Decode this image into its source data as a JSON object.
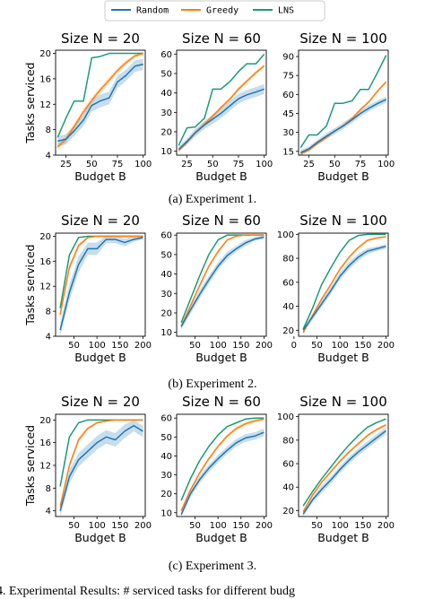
{
  "colors": {
    "Random": "#1f77b4",
    "Greedy": "#ff7f0e",
    "LNS": "#1a9a7a"
  },
  "legend": {
    "entries": [
      "Random",
      "Greedy",
      "LNS"
    ],
    "placement": "top"
  },
  "ylabel": "Tasks serviced",
  "xlabel": "Budget B",
  "captions": [
    "(a) Experiment 1.",
    "(b) Experiment 2.",
    "(c) Experiment 3."
  ],
  "bottom_text": "4. Experimental Results: # serviced tasks for different budg",
  "chart_data": [
    {
      "type": "line",
      "title": "Size N = 20",
      "xlabel": "Budget B",
      "ylabel": "Tasks serviced",
      "xlim": [
        15,
        102
      ],
      "ylim": [
        4,
        20.5
      ],
      "xticks": [
        25,
        50,
        75,
        100
      ],
      "yticks": [
        4,
        8,
        12,
        16,
        20
      ],
      "grid": false,
      "x": [
        17,
        25,
        33,
        42,
        50,
        58,
        67,
        75,
        83,
        92,
        100
      ],
      "series": [
        {
          "name": "Random",
          "values": [
            6.2,
            6.5,
            7.8,
            9.5,
            11.8,
            12.5,
            13.0,
            15.5,
            16.5,
            18.0,
            18.3
          ],
          "band": [
            0.8,
            0.8,
            0.8,
            0.9,
            1.0,
            1.0,
            1.0,
            1.0,
            0.9,
            0.9,
            0.9
          ]
        },
        {
          "name": "Greedy",
          "values": [
            5.3,
            6.5,
            8.5,
            10.8,
            12.6,
            14.2,
            15.8,
            17.3,
            18.5,
            19.6,
            20.0
          ],
          "band": [
            0.5,
            0.5,
            0.5,
            0.5,
            0.5,
            0.5,
            0.5,
            0.4,
            0.4,
            0.3,
            0.3
          ]
        },
        {
          "name": "LNS",
          "values": [
            6.8,
            9.8,
            12.5,
            12.5,
            19.3,
            19.5,
            20.0,
            20.0,
            20.0,
            20.0,
            20.0
          ]
        }
      ]
    },
    {
      "type": "line",
      "title": "Size N = 60",
      "xlabel": "Budget B",
      "ylabel": "",
      "xlim": [
        15,
        102
      ],
      "ylim": [
        8,
        62
      ],
      "xticks": [
        25,
        50,
        75,
        100
      ],
      "yticks": [
        10,
        20,
        30,
        40,
        50,
        60
      ],
      "grid": false,
      "x": [
        17,
        25,
        33,
        42,
        50,
        58,
        67,
        75,
        83,
        92,
        100
      ],
      "series": [
        {
          "name": "Random",
          "values": [
            11.0,
            15.0,
            19.5,
            23.5,
            26.5,
            29.5,
            33.5,
            37.0,
            39.0,
            40.5,
            42.0
          ],
          "band": [
            1.5,
            1.5,
            2,
            2,
            2.5,
            2.5,
            2.5,
            2.5,
            2.5,
            2.5,
            2.5
          ]
        },
        {
          "name": "Greedy",
          "values": [
            10.5,
            14.5,
            19.5,
            24.0,
            28.0,
            32.5,
            37.0,
            42.0,
            46.0,
            50.5,
            54.0
          ],
          "band": [
            1,
            1,
            1,
            1,
            1,
            1,
            1,
            1,
            1,
            1,
            1
          ]
        },
        {
          "name": "LNS",
          "values": [
            13.0,
            22.0,
            22.5,
            27.0,
            42.0,
            42.0,
            46.0,
            51.0,
            55.0,
            55.0,
            60.0
          ]
        }
      ]
    },
    {
      "type": "line",
      "title": "Size N = 100",
      "xlabel": "Budget B",
      "ylabel": "",
      "xlim": [
        15,
        102
      ],
      "ylim": [
        12,
        95
      ],
      "xticks": [
        25,
        50,
        75,
        100
      ],
      "yticks": [
        15,
        30,
        45,
        60,
        75,
        90
      ],
      "grid": false,
      "x": [
        17,
        25,
        33,
        42,
        50,
        58,
        67,
        75,
        83,
        92,
        100
      ],
      "series": [
        {
          "name": "Random",
          "values": [
            14,
            17,
            22,
            27,
            31,
            35,
            40,
            45,
            49,
            53,
            56
          ],
          "band": [
            2,
            2,
            2,
            2.5,
            2.5,
            2.5,
            2.5,
            2.5,
            2.5,
            2.5,
            2.5
          ]
        },
        {
          "name": "Greedy",
          "values": [
            13,
            16,
            21,
            26,
            31,
            35,
            41,
            48,
            54,
            63,
            70
          ],
          "band": [
            1,
            1,
            1,
            1,
            1.2,
            1.2,
            1.2,
            1.2,
            1.2,
            1.2,
            1.2
          ]
        },
        {
          "name": "LNS",
          "values": [
            18,
            28,
            28,
            35,
            53,
            53,
            55,
            64,
            64,
            78,
            91
          ]
        }
      ]
    },
    {
      "type": "line",
      "title": "Size N = 20",
      "xlabel": "Budget B",
      "ylabel": "Tasks serviced",
      "xlim": [
        10,
        205
      ],
      "ylim": [
        4,
        20.5
      ],
      "xticks": [
        50,
        100,
        150,
        200
      ],
      "yticks": [
        4,
        8,
        12,
        16,
        20
      ],
      "grid": false,
      "x": [
        20,
        40,
        60,
        80,
        100,
        120,
        140,
        160,
        180,
        200
      ],
      "series": [
        {
          "name": "Random",
          "values": [
            5.0,
            11.0,
            15.5,
            18.0,
            18.0,
            19.5,
            19.5,
            19.0,
            19.5,
            19.8
          ],
          "band": [
            1.0,
            1.3,
            1.3,
            1.0,
            1.0,
            0.6,
            0.6,
            0.6,
            0.4,
            0.3
          ]
        },
        {
          "name": "Greedy",
          "values": [
            7.5,
            15.0,
            18.5,
            19.8,
            20.0,
            20.0,
            20.0,
            20.0,
            20.0,
            20.0
          ],
          "band": [
            0.5,
            0.5,
            0.4,
            0.2,
            0.1,
            0,
            0,
            0,
            0,
            0
          ]
        },
        {
          "name": "LNS",
          "values": [
            8.5,
            17.0,
            19.8,
            20.0,
            20.0,
            20.0,
            20.0,
            20.0,
            20.0,
            20.0
          ]
        }
      ]
    },
    {
      "type": "line",
      "title": "Size N = 60",
      "xlabel": "Budget B",
      "ylabel": "",
      "xlim": [
        10,
        205
      ],
      "ylim": [
        8,
        61
      ],
      "xticks": [
        50,
        100,
        150,
        200
      ],
      "yticks": [
        10,
        20,
        30,
        40,
        50,
        60
      ],
      "grid": false,
      "x": [
        20,
        40,
        60,
        80,
        100,
        120,
        140,
        160,
        180,
        200
      ],
      "series": [
        {
          "name": "Random",
          "values": [
            13.0,
            21.5,
            29.5,
            37.0,
            44.0,
            49.5,
            53.0,
            56.0,
            58.0,
            59.0
          ],
          "band": [
            1.5,
            2,
            2,
            2,
            2,
            2,
            1.5,
            1.5,
            1,
            1
          ]
        },
        {
          "name": "Greedy",
          "values": [
            13.0,
            23.5,
            34.0,
            44.0,
            51.5,
            57.5,
            59.5,
            60.0,
            60.0,
            60.0
          ],
          "band": [
            1,
            1,
            1,
            1,
            1,
            0.5,
            0.2,
            0,
            0,
            0
          ]
        },
        {
          "name": "LNS",
          "values": [
            15.0,
            27.0,
            39.0,
            50.0,
            57.5,
            60.0,
            60.0,
            60.0,
            60.0,
            60.0
          ]
        }
      ]
    },
    {
      "type": "line",
      "title": "Size N = 100",
      "xlabel": "Budget B",
      "ylabel": "",
      "xlim": [
        10,
        205
      ],
      "ylim": [
        15,
        101
      ],
      "xticks": [
        0,
        50,
        100,
        150,
        200
      ],
      "yticks": [
        20,
        40,
        60,
        80,
        100
      ],
      "grid": false,
      "x": [
        20,
        40,
        60,
        80,
        100,
        120,
        140,
        160,
        180,
        200
      ],
      "series": [
        {
          "name": "Random",
          "values": [
            20,
            31,
            42,
            53,
            65,
            74,
            81,
            86,
            88,
            90
          ],
          "band": [
            2,
            2.5,
            3,
            3,
            3,
            3,
            3,
            2.5,
            2,
            2
          ]
        },
        {
          "name": "Greedy",
          "values": [
            18,
            32,
            46,
            58,
            71,
            81,
            89,
            95,
            97,
            98
          ],
          "band": [
            1.2,
            1.2,
            1.2,
            1.2,
            1.2,
            1.2,
            1,
            1,
            0.8,
            0.8
          ]
        },
        {
          "name": "LNS",
          "values": [
            21,
            38,
            58,
            72,
            85,
            95,
            99,
            100,
            100,
            100
          ]
        }
      ]
    },
    {
      "type": "line",
      "title": "Size N = 20",
      "xlabel": "Budget B",
      "ylabel": "Tasks serviced",
      "xlim": [
        10,
        205
      ],
      "ylim": [
        3,
        21
      ],
      "xticks": [
        50,
        100,
        150,
        200
      ],
      "yticks": [
        4,
        8,
        12,
        16,
        20
      ],
      "grid": false,
      "x": [
        20,
        40,
        60,
        80,
        100,
        120,
        140,
        160,
        180,
        200
      ],
      "series": [
        {
          "name": "Random",
          "values": [
            4.0,
            10.0,
            13.0,
            14.5,
            16.0,
            17.0,
            16.5,
            18.0,
            19.0,
            18.0
          ],
          "band": [
            1.0,
            1.2,
            1.2,
            1.2,
            1.2,
            1.2,
            1.2,
            1.2,
            1.0,
            1.0
          ]
        },
        {
          "name": "Greedy",
          "values": [
            4.8,
            12.0,
            16.5,
            18.5,
            19.5,
            19.8,
            20.0,
            20.0,
            20.0,
            20.0
          ],
          "band": [
            0.5,
            0.5,
            0.5,
            0.3,
            0.2,
            0.1,
            0,
            0,
            0,
            0
          ]
        },
        {
          "name": "LNS",
          "values": [
            8.3,
            17.0,
            19.5,
            20.0,
            20.0,
            20.0,
            20.0,
            20.0,
            20.0,
            20.0
          ]
        }
      ]
    },
    {
      "type": "line",
      "title": "Size N = 60",
      "xlabel": "Budget B",
      "ylabel": "",
      "xlim": [
        10,
        205
      ],
      "ylim": [
        8,
        62
      ],
      "xticks": [
        50,
        100,
        150,
        200
      ],
      "yticks": [
        10,
        20,
        30,
        40,
        50,
        60
      ],
      "grid": false,
      "x": [
        20,
        40,
        60,
        80,
        100,
        120,
        140,
        160,
        180,
        200
      ],
      "series": [
        {
          "name": "Random",
          "values": [
            9.0,
            20.0,
            27.5,
            33.5,
            38.5,
            43.0,
            47.0,
            49.5,
            50.5,
            52.5
          ],
          "band": [
            1.5,
            2,
            2,
            2,
            2,
            2,
            2,
            2,
            2,
            2
          ]
        },
        {
          "name": "Greedy",
          "values": [
            11.0,
            22.0,
            31.0,
            38.5,
            45.0,
            50.5,
            54.5,
            57.0,
            58.5,
            59.5
          ],
          "band": [
            1,
            1,
            1,
            1,
            1,
            1,
            1,
            1,
            1,
            1
          ]
        },
        {
          "name": "LNS",
          "values": [
            16.5,
            28.0,
            37.5,
            45.0,
            51.0,
            55.5,
            57.5,
            59.5,
            60.0,
            60.0
          ]
        }
      ]
    },
    {
      "type": "line",
      "title": "Size N = 100",
      "xlabel": "Budget B",
      "ylabel": "",
      "xlim": [
        10,
        205
      ],
      "ylim": [
        15,
        102
      ],
      "xticks": [
        50,
        100,
        150,
        200
      ],
      "yticks": [
        20,
        40,
        60,
        80,
        100
      ],
      "grid": false,
      "x": [
        20,
        40,
        60,
        80,
        100,
        120,
        140,
        160,
        180,
        200
      ],
      "series": [
        {
          "name": "Random",
          "values": [
            17,
            29,
            38,
            46,
            55,
            63,
            70,
            76,
            82,
            88
          ],
          "band": [
            2,
            2.5,
            3,
            3,
            3,
            3,
            3,
            3,
            3,
            3
          ]
        },
        {
          "name": "Greedy",
          "values": [
            19,
            33,
            44,
            53,
            62,
            70,
            77,
            84,
            89,
            93
          ],
          "band": [
            1.2,
            1.2,
            1.2,
            1.2,
            1.2,
            1.2,
            1.2,
            1.2,
            1.2,
            1.2
          ]
        },
        {
          "name": "LNS",
          "values": [
            24,
            36,
            47,
            57,
            67,
            76,
            84,
            91,
            95,
            98
          ]
        }
      ]
    }
  ]
}
